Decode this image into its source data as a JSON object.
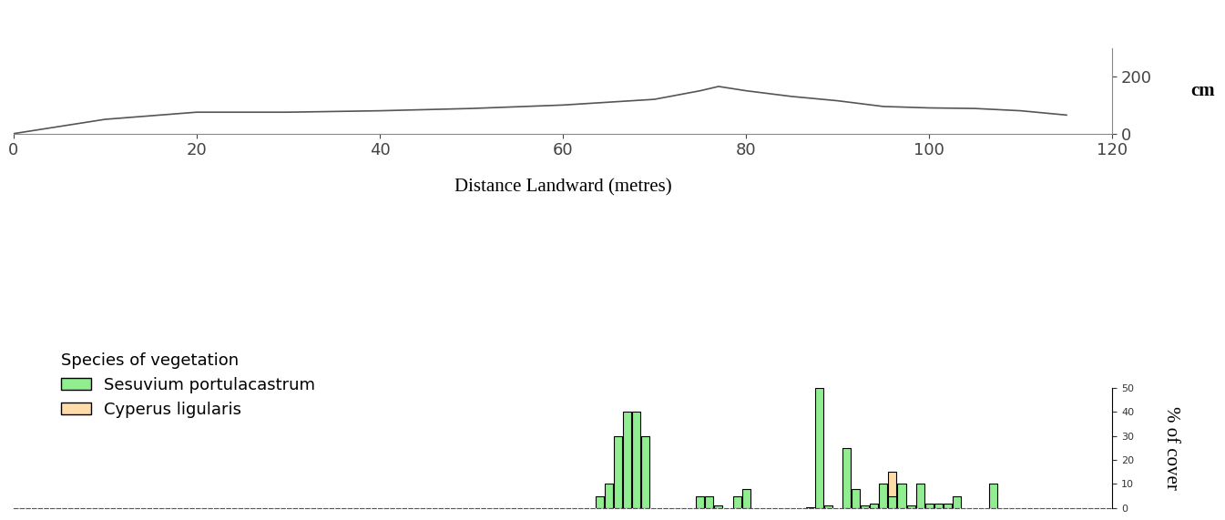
{
  "chart_data": [
    {
      "type": "line",
      "x_label": "Distance Landward (metres)",
      "y_label": "cm",
      "x": [
        0,
        10,
        20,
        30,
        40,
        50,
        60,
        70,
        75,
        77,
        80,
        85,
        90,
        95,
        100,
        105,
        110,
        115
      ],
      "values": [
        0,
        50,
        75,
        75,
        80,
        88,
        100,
        120,
        150,
        165,
        150,
        130,
        115,
        95,
        90,
        88,
        80,
        65
      ],
      "color": "#555555",
      "xlim": [
        0,
        120
      ],
      "xticks": [
        0,
        20,
        40,
        60,
        80,
        100,
        120
      ],
      "ylim": [
        0,
        300
      ],
      "yticks": [
        0,
        200
      ]
    },
    {
      "type": "bar",
      "y_label": "% of cover",
      "legend_title": "Species of vegetation",
      "legend": "upper left",
      "tick_labels": "y",
      "x": [
        64,
        65,
        66,
        67,
        68,
        69,
        75,
        76,
        77,
        79,
        80,
        87,
        88,
        89,
        91,
        92,
        93,
        94,
        95,
        96,
        97,
        98,
        99,
        100,
        101,
        102,
        103,
        107
      ],
      "series": [
        {
          "name": "Sesuvium portulacastrum",
          "color": "#90ee90",
          "values": [
            5,
            10,
            30,
            40,
            40,
            30,
            5,
            5,
            1,
            5,
            8,
            0.5,
            50,
            1,
            25,
            8,
            1,
            2,
            10,
            5,
            10,
            1,
            10,
            2,
            2,
            2,
            5,
            10
          ]
        },
        {
          "name": "Cyperus ligularis",
          "color": "#ffdcaa",
          "values": [
            null,
            null,
            null,
            null,
            null,
            null,
            null,
            null,
            null,
            null,
            null,
            null,
            null,
            null,
            null,
            null,
            null,
            null,
            null,
            15,
            null,
            null,
            null,
            null,
            null,
            null,
            null,
            null
          ]
        }
      ],
      "xlim": [
        0,
        120
      ],
      "ylim": [
        0,
        50
      ],
      "yticks": [
        0,
        10,
        20,
        30,
        40,
        50
      ]
    }
  ]
}
